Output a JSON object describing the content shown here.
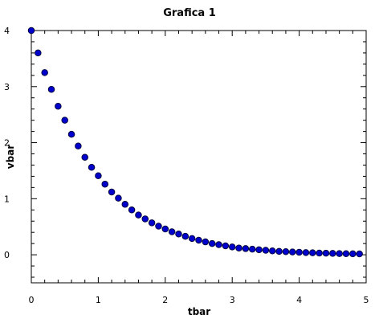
{
  "chart_data": {
    "type": "scatter",
    "title": "Grafica 1",
    "xlabel": "tbar",
    "ylabel": "vbar",
    "xlim": [
      0,
      5
    ],
    "ylim": [
      -0.5,
      4
    ],
    "xticks": [
      "0",
      "1",
      "2",
      "3",
      "4",
      "5"
    ],
    "yticks": [
      "0",
      "1",
      "2",
      "3",
      "4"
    ],
    "grid": false,
    "marker_color": "#0000cc",
    "marker_edge": "#000033",
    "series": [
      {
        "x": [
          0,
          0.1,
          0.2,
          0.3,
          0.4,
          0.5,
          0.6,
          0.7,
          0.8,
          0.9,
          1.0,
          1.1,
          1.2,
          1.3,
          1.4,
          1.5,
          1.6,
          1.7,
          1.8,
          1.9,
          2.0,
          2.1,
          2.2,
          2.3,
          2.4,
          2.5,
          2.6,
          2.7,
          2.8,
          2.9,
          3.0,
          3.1,
          3.2,
          3.3,
          3.4,
          3.5,
          3.6,
          3.7,
          3.8,
          3.9,
          4.0,
          4.1,
          4.2,
          4.3,
          4.4,
          4.5,
          4.6,
          4.7,
          4.8,
          4.9
        ],
        "y": [
          4.0,
          3.6,
          3.25,
          2.95,
          2.65,
          2.4,
          2.15,
          1.94,
          1.74,
          1.56,
          1.41,
          1.26,
          1.12,
          1.01,
          0.9,
          0.8,
          0.71,
          0.64,
          0.57,
          0.51,
          0.46,
          0.41,
          0.37,
          0.33,
          0.29,
          0.26,
          0.23,
          0.2,
          0.18,
          0.16,
          0.14,
          0.12,
          0.11,
          0.1,
          0.09,
          0.08,
          0.07,
          0.06,
          0.055,
          0.05,
          0.045,
          0.04,
          0.035,
          0.03,
          0.028,
          0.025,
          0.022,
          0.02,
          0.018,
          0.016
        ]
      }
    ]
  }
}
